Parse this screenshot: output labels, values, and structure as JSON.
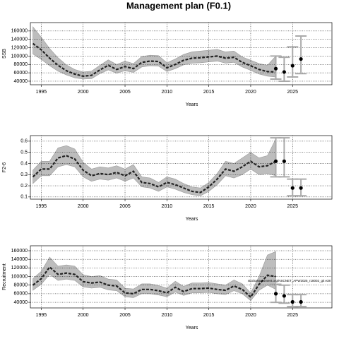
{
  "title": "Management plan (F0.1)",
  "chart_data": [
    {
      "type": "line",
      "ylabel": "SSB",
      "xlabel": "Years",
      "x": [
        1994,
        1995,
        1996,
        1997,
        1998,
        1999,
        2000,
        2001,
        2002,
        2003,
        2004,
        2005,
        2006,
        2007,
        2008,
        2009,
        2010,
        2011,
        2012,
        2013,
        2014,
        2015,
        2016,
        2017,
        2018,
        2019,
        2020,
        2021,
        2022,
        2023
      ],
      "values": [
        130000,
        115000,
        95000,
        78000,
        65000,
        57000,
        52000,
        54000,
        67000,
        78000,
        68000,
        75000,
        70000,
        85000,
        88000,
        87000,
        72000,
        80000,
        90000,
        95000,
        96000,
        98000,
        100000,
        95000,
        97000,
        85000,
        77000,
        68000,
        63000,
        62000
      ],
      "lower": [
        105000,
        92000,
        77000,
        64000,
        55000,
        48000,
        45000,
        46000,
        58000,
        67000,
        59000,
        65000,
        61000,
        74000,
        77000,
        76000,
        63000,
        70000,
        79000,
        83000,
        84000,
        86000,
        88000,
        83000,
        85000,
        74000,
        66000,
        57000,
        52000,
        50000
      ],
      "upper": [
        170000,
        145000,
        118000,
        96000,
        79000,
        68000,
        62000,
        64000,
        78000,
        91000,
        80000,
        88000,
        82000,
        99000,
        102000,
        101000,
        84000,
        93000,
        104000,
        110000,
        112000,
        114000,
        116000,
        110000,
        112000,
        98000,
        90000,
        82000,
        78000,
        100000
      ],
      "points": {
        "x": [
          2023,
          2024,
          2025,
          2026
        ],
        "values": [
          70000,
          62000,
          77000,
          93000
        ],
        "lower": [
          45000,
          40000,
          50000,
          58000
        ],
        "upper": [
          100000,
          97000,
          122000,
          148000
        ]
      },
      "xlim": [
        1993.7,
        2029.7
      ],
      "xticks": [
        1995,
        2000,
        2005,
        2010,
        2015,
        2020,
        2025
      ],
      "ylim": [
        31500,
        180000
      ],
      "yticks": [
        40000,
        60000,
        80000,
        100000,
        120000,
        140000,
        160000
      ],
      "grid": true
    },
    {
      "type": "line",
      "ylabel": "F2-6",
      "xlabel": "Years",
      "x": [
        1994,
        1995,
        1996,
        1997,
        1998,
        1999,
        2000,
        2001,
        2002,
        2003,
        2004,
        2005,
        2006,
        2007,
        2008,
        2009,
        2010,
        2011,
        2012,
        2013,
        2014,
        2015,
        2016,
        2017,
        2018,
        2019,
        2020,
        2021,
        2022,
        2023
      ],
      "values": [
        0.28,
        0.35,
        0.35,
        0.45,
        0.47,
        0.44,
        0.34,
        0.29,
        0.31,
        0.3,
        0.32,
        0.29,
        0.33,
        0.23,
        0.22,
        0.19,
        0.23,
        0.21,
        0.18,
        0.15,
        0.14,
        0.19,
        0.26,
        0.35,
        0.33,
        0.37,
        0.42,
        0.37,
        0.38,
        0.42
      ],
      "lower": [
        0.22,
        0.29,
        0.29,
        0.37,
        0.39,
        0.37,
        0.28,
        0.24,
        0.26,
        0.25,
        0.27,
        0.24,
        0.27,
        0.19,
        0.18,
        0.15,
        0.19,
        0.17,
        0.14,
        0.12,
        0.11,
        0.15,
        0.21,
        0.29,
        0.27,
        0.3,
        0.35,
        0.3,
        0.31,
        0.29
      ],
      "upper": [
        0.34,
        0.42,
        0.42,
        0.54,
        0.56,
        0.53,
        0.41,
        0.35,
        0.37,
        0.36,
        0.38,
        0.35,
        0.39,
        0.28,
        0.27,
        0.23,
        0.28,
        0.26,
        0.22,
        0.19,
        0.18,
        0.23,
        0.31,
        0.42,
        0.4,
        0.45,
        0.5,
        0.45,
        0.47,
        0.62
      ],
      "points": {
        "x": [
          2023,
          2024,
          2025,
          2026
        ],
        "values": [
          0.42,
          0.42,
          0.18,
          0.18
        ],
        "lower": [
          0.28,
          0.28,
          0.11,
          0.11
        ],
        "upper": [
          0.63,
          0.63,
          0.26,
          0.26
        ]
      },
      "xlim": [
        1993.7,
        2029.7
      ],
      "xticks": [
        1995,
        2000,
        2005,
        2010,
        2015,
        2020,
        2025
      ],
      "ylim": [
        0.08,
        0.65
      ],
      "yticks": [
        0.1,
        0.2,
        0.3,
        0.4,
        0.5,
        0.6
      ],
      "grid": true
    },
    {
      "type": "line",
      "ylabel": "Recruitment",
      "xlabel": "Years",
      "annotation": "stockassessment.org/NSCNET_APW2025_r18002_git e38",
      "x": [
        1994,
        1995,
        1996,
        1997,
        1998,
        1999,
        2000,
        2001,
        2002,
        2003,
        2004,
        2005,
        2006,
        2007,
        2008,
        2009,
        2010,
        2011,
        2012,
        2013,
        2014,
        2015,
        2016,
        2017,
        2018,
        2019,
        2020,
        2021,
        2022,
        2023
      ],
      "values": [
        80000,
        95000,
        122000,
        105000,
        108000,
        105000,
        88000,
        85000,
        87000,
        80000,
        78000,
        62000,
        60000,
        70000,
        70000,
        67000,
        62000,
        75000,
        65000,
        72000,
        72000,
        73000,
        70000,
        68000,
        78000,
        70000,
        52000,
        82000,
        103000,
        100000
      ],
      "lower": [
        68000,
        82000,
        105000,
        91000,
        94000,
        91000,
        76000,
        73000,
        75000,
        69000,
        67000,
        53000,
        51000,
        60000,
        60000,
        57000,
        53000,
        64000,
        56000,
        62000,
        62000,
        63000,
        60000,
        58000,
        67000,
        60000,
        44000,
        68000,
        80000,
        70000
      ],
      "upper": [
        95000,
        112000,
        145000,
        124000,
        127000,
        124000,
        104000,
        100000,
        102000,
        94000,
        92000,
        73000,
        71000,
        83000,
        83000,
        79000,
        73000,
        89000,
        77000,
        85000,
        85000,
        86000,
        83000,
        80000,
        92000,
        83000,
        62000,
        100000,
        150000,
        158000
      ],
      "points": {
        "x": [
          2023,
          2024,
          2025,
          2026
        ],
        "values": [
          60000,
          55000,
          41000,
          41000
        ],
        "lower": [
          40000,
          38000,
          30000,
          30000
        ],
        "upper": [
          82000,
          80000,
          58000,
          58000
        ]
      },
      "xlim": [
        1993.7,
        2029.7
      ],
      "xticks": [
        1995,
        2000,
        2005,
        2010,
        2015,
        2020,
        2025
      ],
      "ylim": [
        27000,
        171500
      ],
      "yticks": [
        40000,
        60000,
        80000,
        100000,
        120000,
        140000,
        160000
      ],
      "grid": true
    }
  ]
}
